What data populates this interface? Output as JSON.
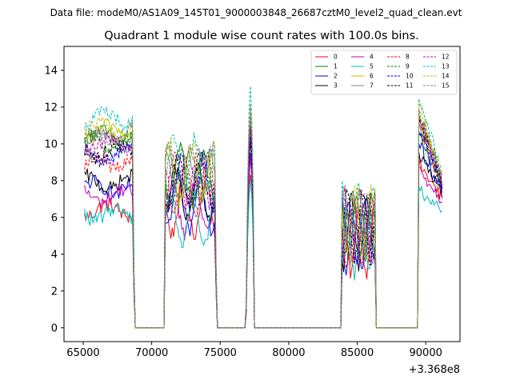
{
  "figure": {
    "suptitle": "Data file: modeM0/AS1A09_145T01_9000003848_26687cztM0_level2_quad_clean.evt",
    "title": "Quadrant 1 module wise count rates with 100.0s bins.",
    "x_offset_text": "+3.368e8"
  },
  "colors": {
    "palette": [
      "#ff0000",
      "#008000",
      "#0000ff",
      "#000000",
      "#bf00bf",
      "#00bfbf",
      "#bfbf00",
      "#808080"
    ]
  },
  "chart_data": {
    "type": "line",
    "title": "Quadrant 1 module wise count rates with 100.0s bins.",
    "xlabel": "",
    "ylabel": "",
    "x_offset": 336800000,
    "xlim": [
      63600,
      92500
    ],
    "ylim": [
      -0.75,
      15.3
    ],
    "xticks": [
      65000,
      70000,
      75000,
      80000,
      85000,
      90000
    ],
    "xtick_labels": [
      "65000",
      "70000",
      "75000",
      "80000",
      "85000",
      "90000"
    ],
    "yticks": [
      0,
      2,
      4,
      6,
      8,
      10,
      12,
      14
    ],
    "ytick_labels": [
      "0",
      "2",
      "4",
      "6",
      "8",
      "10",
      "12",
      "14"
    ],
    "grid": false,
    "legend": {
      "location": "top-right",
      "columns": 4,
      "entries": [
        "0",
        "1",
        "2",
        "3",
        "4",
        "5",
        "6",
        "7",
        "8",
        "9",
        "10",
        "11",
        "12",
        "13",
        "14",
        "15"
      ]
    },
    "segments": [
      {
        "x0": 65100,
        "x1": 68700,
        "kind": "active"
      },
      {
        "x0": 68700,
        "x1": 69100,
        "kind": "drop"
      },
      {
        "x0": 69100,
        "x1": 71000,
        "kind": "zero"
      },
      {
        "x0": 71000,
        "x1": 74700,
        "kind": "active"
      },
      {
        "x0": 74700,
        "x1": 75000,
        "kind": "drop"
      },
      {
        "x0": 75000,
        "x1": 76900,
        "kind": "zero"
      },
      {
        "x0": 76900,
        "x1": 77500,
        "kind": "spike"
      },
      {
        "x0": 77500,
        "x1": 83900,
        "kind": "zero"
      },
      {
        "x0": 83900,
        "x1": 86400,
        "kind": "active"
      },
      {
        "x0": 86400,
        "x1": 89500,
        "kind": "zero"
      },
      {
        "x0": 89500,
        "x1": 91200,
        "kind": "active"
      }
    ],
    "series": [
      {
        "label": "0",
        "color": "#ff0000",
        "dash": "solid",
        "level_a": 6.4,
        "level_b": 7.0,
        "level_c": 4.8,
        "level_d": 8.9,
        "spike": 8.6
      },
      {
        "label": "1",
        "color": "#008000",
        "dash": "solid",
        "level_a": 10.4,
        "level_b": 8.8,
        "level_c": 5.4,
        "level_d": 10.6,
        "spike": 11.5
      },
      {
        "label": "2",
        "color": "#0000ff",
        "dash": "solid",
        "level_a": 7.6,
        "level_b": 7.2,
        "level_c": 5.0,
        "level_d": 10.0,
        "spike": 9.6
      },
      {
        "label": "3",
        "color": "#000000",
        "dash": "solid",
        "level_a": 7.9,
        "level_b": 7.8,
        "level_c": 5.2,
        "level_d": 9.5,
        "spike": 10.2
      },
      {
        "label": "4",
        "color": "#bf00bf",
        "dash": "solid",
        "level_a": 7.2,
        "level_b": 7.0,
        "level_c": 5.1,
        "level_d": 8.6,
        "spike": 9.2
      },
      {
        "label": "5",
        "color": "#00bfbf",
        "dash": "solid",
        "level_a": 6.2,
        "level_b": 6.4,
        "level_c": 4.7,
        "level_d": 7.5,
        "spike": 8.0
      },
      {
        "label": "6",
        "color": "#bfbf00",
        "dash": "solid",
        "level_a": 10.7,
        "level_b": 8.8,
        "level_c": 5.6,
        "level_d": 11.6,
        "spike": 11.2
      },
      {
        "label": "7",
        "color": "#808080",
        "dash": "solid",
        "level_a": 10.2,
        "level_b": 8.6,
        "level_c": 5.3,
        "level_d": 10.8,
        "spike": 11.3
      },
      {
        "label": "8",
        "color": "#ff0000",
        "dash": "dashed",
        "level_a": 9.0,
        "level_b": 8.2,
        "level_c": 5.2,
        "level_d": 11.2,
        "spike": 10.6
      },
      {
        "label": "9",
        "color": "#008000",
        "dash": "dashed",
        "level_a": 10.1,
        "level_b": 8.6,
        "level_c": 5.6,
        "level_d": 11.8,
        "spike": 11.0
      },
      {
        "label": "10",
        "color": "#0000ff",
        "dash": "dashed",
        "level_a": 9.4,
        "level_b": 8.4,
        "level_c": 5.4,
        "level_d": 11.0,
        "spike": 10.4
      },
      {
        "label": "11",
        "color": "#000000",
        "dash": "dashed",
        "level_a": 9.6,
        "level_b": 8.5,
        "level_c": 5.5,
        "level_d": 11.4,
        "spike": 10.8
      },
      {
        "label": "12",
        "color": "#bf00bf",
        "dash": "dashed",
        "level_a": 10.0,
        "level_b": 8.7,
        "level_c": 5.6,
        "level_d": 11.5,
        "spike": 10.9
      },
      {
        "label": "13",
        "color": "#00bfbf",
        "dash": "dashed",
        "level_a": 11.4,
        "level_b": 9.4,
        "level_c": 6.0,
        "level_d": 12.6,
        "spike": 13.0
      },
      {
        "label": "14",
        "color": "#bfbf00",
        "dash": "dashed",
        "level_a": 10.8,
        "level_b": 9.1,
        "level_c": 5.8,
        "level_d": 12.2,
        "spike": 12.0
      },
      {
        "label": "15",
        "color": "#808080",
        "dash": "dashed",
        "level_a": 10.5,
        "level_b": 8.9,
        "level_c": 5.7,
        "level_d": 11.9,
        "spike": 11.7
      }
    ]
  }
}
